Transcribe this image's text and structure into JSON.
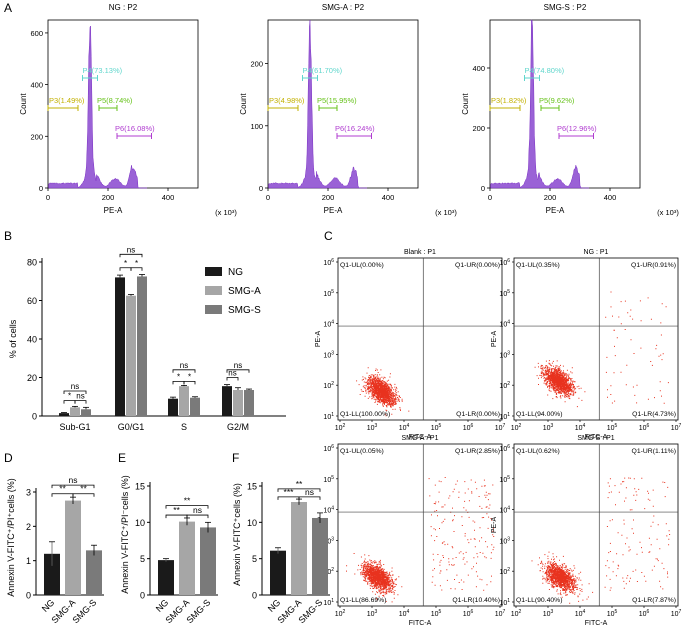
{
  "panel_letters": [
    "A",
    "B",
    "C",
    "D",
    "E",
    "F"
  ],
  "colors": {
    "black": "#1a1a1a",
    "light_gray": "#a6a6a6",
    "mid_gray": "#7a7a7a",
    "histogram_fill": "#9a62d6",
    "histogram_edge": "#7b2fc4",
    "dot": "#e8321e",
    "gate_p3": "#c2b000",
    "gate_p4": "#5fd6cc",
    "gate_p5": "#66c21a",
    "gate_p6": "#b03cd0"
  },
  "chart_data": [
    {
      "id": "A1",
      "type": "histogram",
      "title": "NG : P2",
      "xlabel": "PE-A",
      "ylabel": "Count",
      "x_unit": "(x 10³)",
      "xlim": [
        0,
        500
      ],
      "ylim": [
        0,
        650
      ],
      "xticks": [
        0,
        200,
        400
      ],
      "yticks": [
        0,
        200,
        400,
        600
      ],
      "peaks": [
        {
          "x": 140,
          "height": 600
        },
        {
          "x": 280,
          "height": 55
        }
      ],
      "gates": [
        {
          "name": "P3",
          "label": "P3(1.49%)",
          "x_start": 0,
          "x_end": 100
        },
        {
          "name": "P4",
          "label": "P4(73.13%)",
          "x_start": 115,
          "x_end": 165
        },
        {
          "name": "P5",
          "label": "P5(8.74%)",
          "x_start": 170,
          "x_end": 230
        },
        {
          "name": "P6",
          "label": "P6(16.08%)",
          "x_start": 230,
          "x_end": 345
        }
      ]
    },
    {
      "id": "A2",
      "type": "histogram",
      "title": "SMG-A : P2",
      "xlabel": "PE-A",
      "ylabel": "Count",
      "x_unit": "(x 10³)",
      "xlim": [
        0,
        500
      ],
      "ylim": [
        0,
        270
      ],
      "xticks": [
        0,
        200,
        400
      ],
      "yticks": [
        0,
        100,
        200
      ],
      "peaks": [
        {
          "x": 140,
          "height": 250
        },
        {
          "x": 285,
          "height": 18
        }
      ],
      "gates": [
        {
          "name": "P3",
          "label": "P3(4.98%)",
          "x_start": 0,
          "x_end": 100
        },
        {
          "name": "P4",
          "label": "P4(61.70%)",
          "x_start": 115,
          "x_end": 165
        },
        {
          "name": "P5",
          "label": "P5(15.95%)",
          "x_start": 170,
          "x_end": 230
        },
        {
          "name": "P6",
          "label": "P6(16.24%)",
          "x_start": 230,
          "x_end": 345
        }
      ]
    },
    {
      "id": "A3",
      "type": "histogram",
      "title": "SMG-S : P2",
      "xlabel": "PE-A",
      "ylabel": "Count",
      "x_unit": "(x 10³)",
      "xlim": [
        0,
        500
      ],
      "ylim": [
        0,
        560
      ],
      "xticks": [
        0,
        200,
        400
      ],
      "yticks": [
        0,
        200,
        400
      ],
      "peaks": [
        {
          "x": 140,
          "height": 510
        },
        {
          "x": 285,
          "height": 40
        }
      ],
      "gates": [
        {
          "name": "P3",
          "label": "P3(1.82%)",
          "x_start": 0,
          "x_end": 100
        },
        {
          "name": "P4",
          "label": "P4(74.80%)",
          "x_start": 115,
          "x_end": 165
        },
        {
          "name": "P5",
          "label": "P5(9.62%)",
          "x_start": 170,
          "x_end": 230
        },
        {
          "name": "P6",
          "label": "P6(12.96%)",
          "x_start": 230,
          "x_end": 345
        }
      ]
    },
    {
      "id": "B",
      "type": "bar",
      "ylabel": "% of cells",
      "ylim": [
        0,
        80
      ],
      "yticks": [
        0,
        20,
        40,
        60,
        80
      ],
      "categories": [
        "Sub-G1",
        "G0/G1",
        "S",
        "G2/M"
      ],
      "series": [
        {
          "name": "NG",
          "values": [
            1.5,
            72,
            9,
            15.5
          ],
          "errors": [
            0.3,
            1.2,
            0.8,
            0.8
          ]
        },
        {
          "name": "SMG-A",
          "values": [
            4.5,
            62.5,
            15.5,
            13.5
          ],
          "errors": [
            0.5,
            0.6,
            0.4,
            1.2
          ]
        },
        {
          "name": "SMG-S",
          "values": [
            3.5,
            72.5,
            9.5,
            13.5
          ],
          "errors": [
            1.0,
            1.0,
            0.5,
            0.5
          ]
        }
      ],
      "significance": [
        {
          "category": 0,
          "from": 0,
          "to": 2,
          "label": "ns",
          "value": 13
        },
        {
          "category": 0,
          "from": 0,
          "to": 1,
          "label": "*",
          "value": 8
        },
        {
          "category": 0,
          "from": 1,
          "to": 2,
          "label": "ns",
          "value": 8
        },
        {
          "category": 1,
          "from": 0,
          "to": 2,
          "label": "ns",
          "value": 84
        },
        {
          "category": 1,
          "from": 0,
          "to": 1,
          "label": "*",
          "value": 77
        },
        {
          "category": 1,
          "from": 1,
          "to": 2,
          "label": "*",
          "value": 77
        },
        {
          "category": 2,
          "from": 0,
          "to": 2,
          "label": "ns",
          "value": 24
        },
        {
          "category": 2,
          "from": 0,
          "to": 1,
          "label": "*",
          "value": 18
        },
        {
          "category": 2,
          "from": 1,
          "to": 2,
          "label": "*",
          "value": 18
        },
        {
          "category": 3,
          "from": 0,
          "to": 2,
          "label": "ns",
          "value": 24
        },
        {
          "category": 3,
          "from": 0,
          "to": 1,
          "label": "ns",
          "value": 20
        }
      ]
    },
    {
      "id": "C",
      "type": "scatter",
      "xlabel": "FITC-A",
      "ylabel": "PE-A",
      "x_exponents": [
        2,
        3,
        4,
        5,
        6,
        7
      ],
      "y_exponents": [
        1,
        2,
        3,
        4,
        5,
        6
      ],
      "panels": [
        {
          "title": "Blank : P1",
          "UL": "Q1-UL(0.00%)",
          "UR": "Q1-UR(0.00%)",
          "LL": "Q1-LL(100.00%)",
          "LR": "Q1-LR(0.00%)"
        },
        {
          "title": "NG : P1",
          "UL": "Q1-UL(0.35%)",
          "UR": "Q1-UR(0.91%)",
          "LL": "Q1-LL(94.00%)",
          "LR": "Q1-LR(4.73%)"
        },
        {
          "title": "SMG-A : P1",
          "UL": "Q1-UL(0.05%)",
          "UR": "Q1-UR(2.85%)",
          "LL": "Q1-LL(86.69%)",
          "LR": "Q1-LR(10.40%)"
        },
        {
          "title": "SMG-S : P1",
          "UL": "Q1-UL(0.62%)",
          "UR": "Q1-UR(1.11%)",
          "LL": "Q1-LL(90.40%)",
          "LR": "Q1-LR(7.87%)"
        }
      ]
    },
    {
      "id": "D",
      "type": "bar",
      "ylabel": "Annexin V-FITC⁺/PI⁺cells (%)",
      "ylim": [
        0,
        3
      ],
      "yticks": [
        0,
        1,
        2,
        3
      ],
      "categories": [
        "NG",
        "SMG-A",
        "SMG-S"
      ],
      "values": [
        1.2,
        2.75,
        1.3
      ],
      "errors": [
        0.35,
        0.1,
        0.15
      ],
      "significance": [
        {
          "from": 0,
          "to": 2,
          "label": "ns",
          "value": 3.2
        },
        {
          "from": 0,
          "to": 1,
          "label": "**",
          "value": 2.95
        },
        {
          "from": 1,
          "to": 2,
          "label": "**",
          "value": 2.95
        }
      ]
    },
    {
      "id": "E",
      "type": "bar",
      "ylabel": "Annexin V-FITC⁺/PI⁻cells (%)",
      "ylim": [
        0,
        15
      ],
      "yticks": [
        0,
        5,
        10,
        15
      ],
      "categories": [
        "NG",
        "SMG-A",
        "SMG-S"
      ],
      "values": [
        4.8,
        10.1,
        9.3
      ],
      "errors": [
        0.2,
        0.5,
        0.7
      ],
      "significance": [
        {
          "from": 0,
          "to": 2,
          "label": "**",
          "value": 12.3
        },
        {
          "from": 0,
          "to": 1,
          "label": "**",
          "value": 11.0
        },
        {
          "from": 1,
          "to": 2,
          "label": "ns",
          "value": 11.0
        }
      ]
    },
    {
      "id": "F",
      "type": "bar",
      "ylabel": "Annexin V-FITC⁺cells (%)",
      "ylim": [
        0,
        15
      ],
      "yticks": [
        0,
        5,
        10,
        15
      ],
      "categories": [
        "NG",
        "SMG-A",
        "SMG-S"
      ],
      "values": [
        6.1,
        12.8,
        10.6
      ],
      "errors": [
        0.4,
        0.4,
        0.7
      ],
      "significance": [
        {
          "from": 0,
          "to": 2,
          "label": "**",
          "value": 14.6
        },
        {
          "from": 0,
          "to": 1,
          "label": "***",
          "value": 13.5
        },
        {
          "from": 1,
          "to": 2,
          "label": "ns",
          "value": 13.5
        }
      ]
    }
  ]
}
